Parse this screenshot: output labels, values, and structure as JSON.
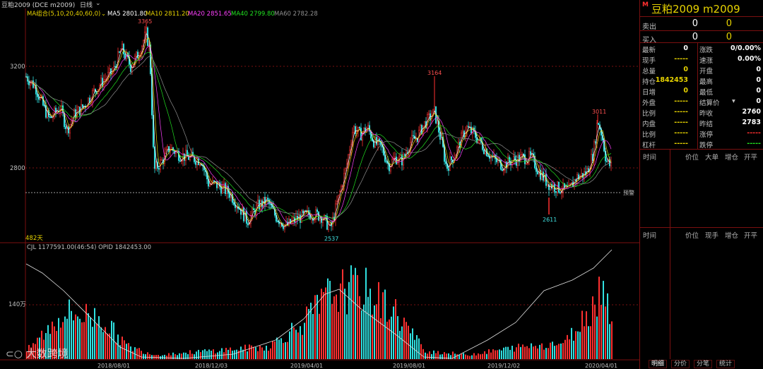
{
  "header": {
    "instrument": "豆粕2009 (DCE m2009)",
    "period": "日线",
    "ma_group_label": "MA组合(5,10,20,40,60,0)",
    "ma5": "MA5 2801.80",
    "ma10": "MA10 2811.20",
    "ma20": "MA20 2851.65",
    "ma40": "MA40 2799.80",
    "ma60": "MA60 2782.28",
    "colors": {
      "ma5": "#ffffff",
      "ma10": "#e6d200",
      "ma20": "#ff40ff",
      "ma40": "#20e020",
      "ma60": "#909090"
    }
  },
  "price_panel": {
    "y_ticks": [
      "3200",
      "2800"
    ],
    "markers": {
      "high_1": "3365",
      "high_2": "3164",
      "high_3": "3011",
      "low_1": "2537",
      "low_2": "2611"
    },
    "days_label": "482天",
    "settle_label": "预警"
  },
  "volume_panel": {
    "header": "CJL 1177591.00(46:54)  OPID 1842453.00",
    "y_tick": "140万"
  },
  "x_axis": [
    "2018/08/01",
    "2018/12/03",
    "2019/04/01",
    "2019/08/01",
    "2019/12/02",
    "2020/04/01"
  ],
  "side_panel": {
    "logo": "M",
    "title": "豆粕2009  m2009",
    "sell": {
      "label": "卖出",
      "price": "0",
      "vol": "0"
    },
    "buy": {
      "label": "买入",
      "price": "0",
      "vol": "0"
    },
    "quote_rows": [
      {
        "l1": "最新",
        "v1": "0",
        "c1": "#ffffff",
        "l2": "涨跌",
        "v2": "0/0.00%",
        "c2": "#ffffff"
      },
      {
        "l1": "现手",
        "v1": "-----",
        "c1": "#e6d200",
        "l2": "速涨",
        "v2": "0.00%",
        "c2": "#ffffff"
      },
      {
        "l1": "总量",
        "v1": "0",
        "c1": "#e6d200",
        "l2": "开盘",
        "v2": "0",
        "c2": "#ffffff"
      },
      {
        "l1": "持仓",
        "v1": "1842453",
        "c1": "#e6d200",
        "l2": "最高",
        "v2": "0",
        "c2": "#ffffff"
      },
      {
        "l1": "日增",
        "v1": "0",
        "c1": "#e6d200",
        "l2": "最低",
        "v2": "0",
        "c2": "#ffffff"
      },
      {
        "l1": "外盘",
        "v1": "-----",
        "c1": "#e6d200",
        "l2": "结算价",
        "v2": "0",
        "c2": "#ffffff"
      },
      {
        "l1": "比例",
        "v1": "-----",
        "c1": "#e6d200",
        "l2": "昨收",
        "v2": "2760",
        "c2": "#ffffff"
      },
      {
        "l1": "内盘",
        "v1": "-----",
        "c1": "#e6d200",
        "l2": "昨结",
        "v2": "2783",
        "c2": "#ffffff"
      },
      {
        "l1": "比例",
        "v1": "-----",
        "c1": "#e6d200",
        "l2": "涨停",
        "v2": "-----",
        "c2": "#ff3030"
      },
      {
        "l1": "杠杆",
        "v1": "-----",
        "c1": "#e6d200",
        "l2": "跌停",
        "v2": "-----",
        "c2": "#20e020"
      }
    ],
    "settle_arrow": "▾",
    "table1_head": [
      "时间",
      "价位",
      "大单",
      "增仓",
      "开平"
    ],
    "table2_head": [
      "时间",
      "价位",
      "现手",
      "增仓",
      "开平"
    ],
    "tabs": [
      "明细",
      "分价",
      "分笔",
      "统计"
    ]
  },
  "watermark": "大数跨境"
}
